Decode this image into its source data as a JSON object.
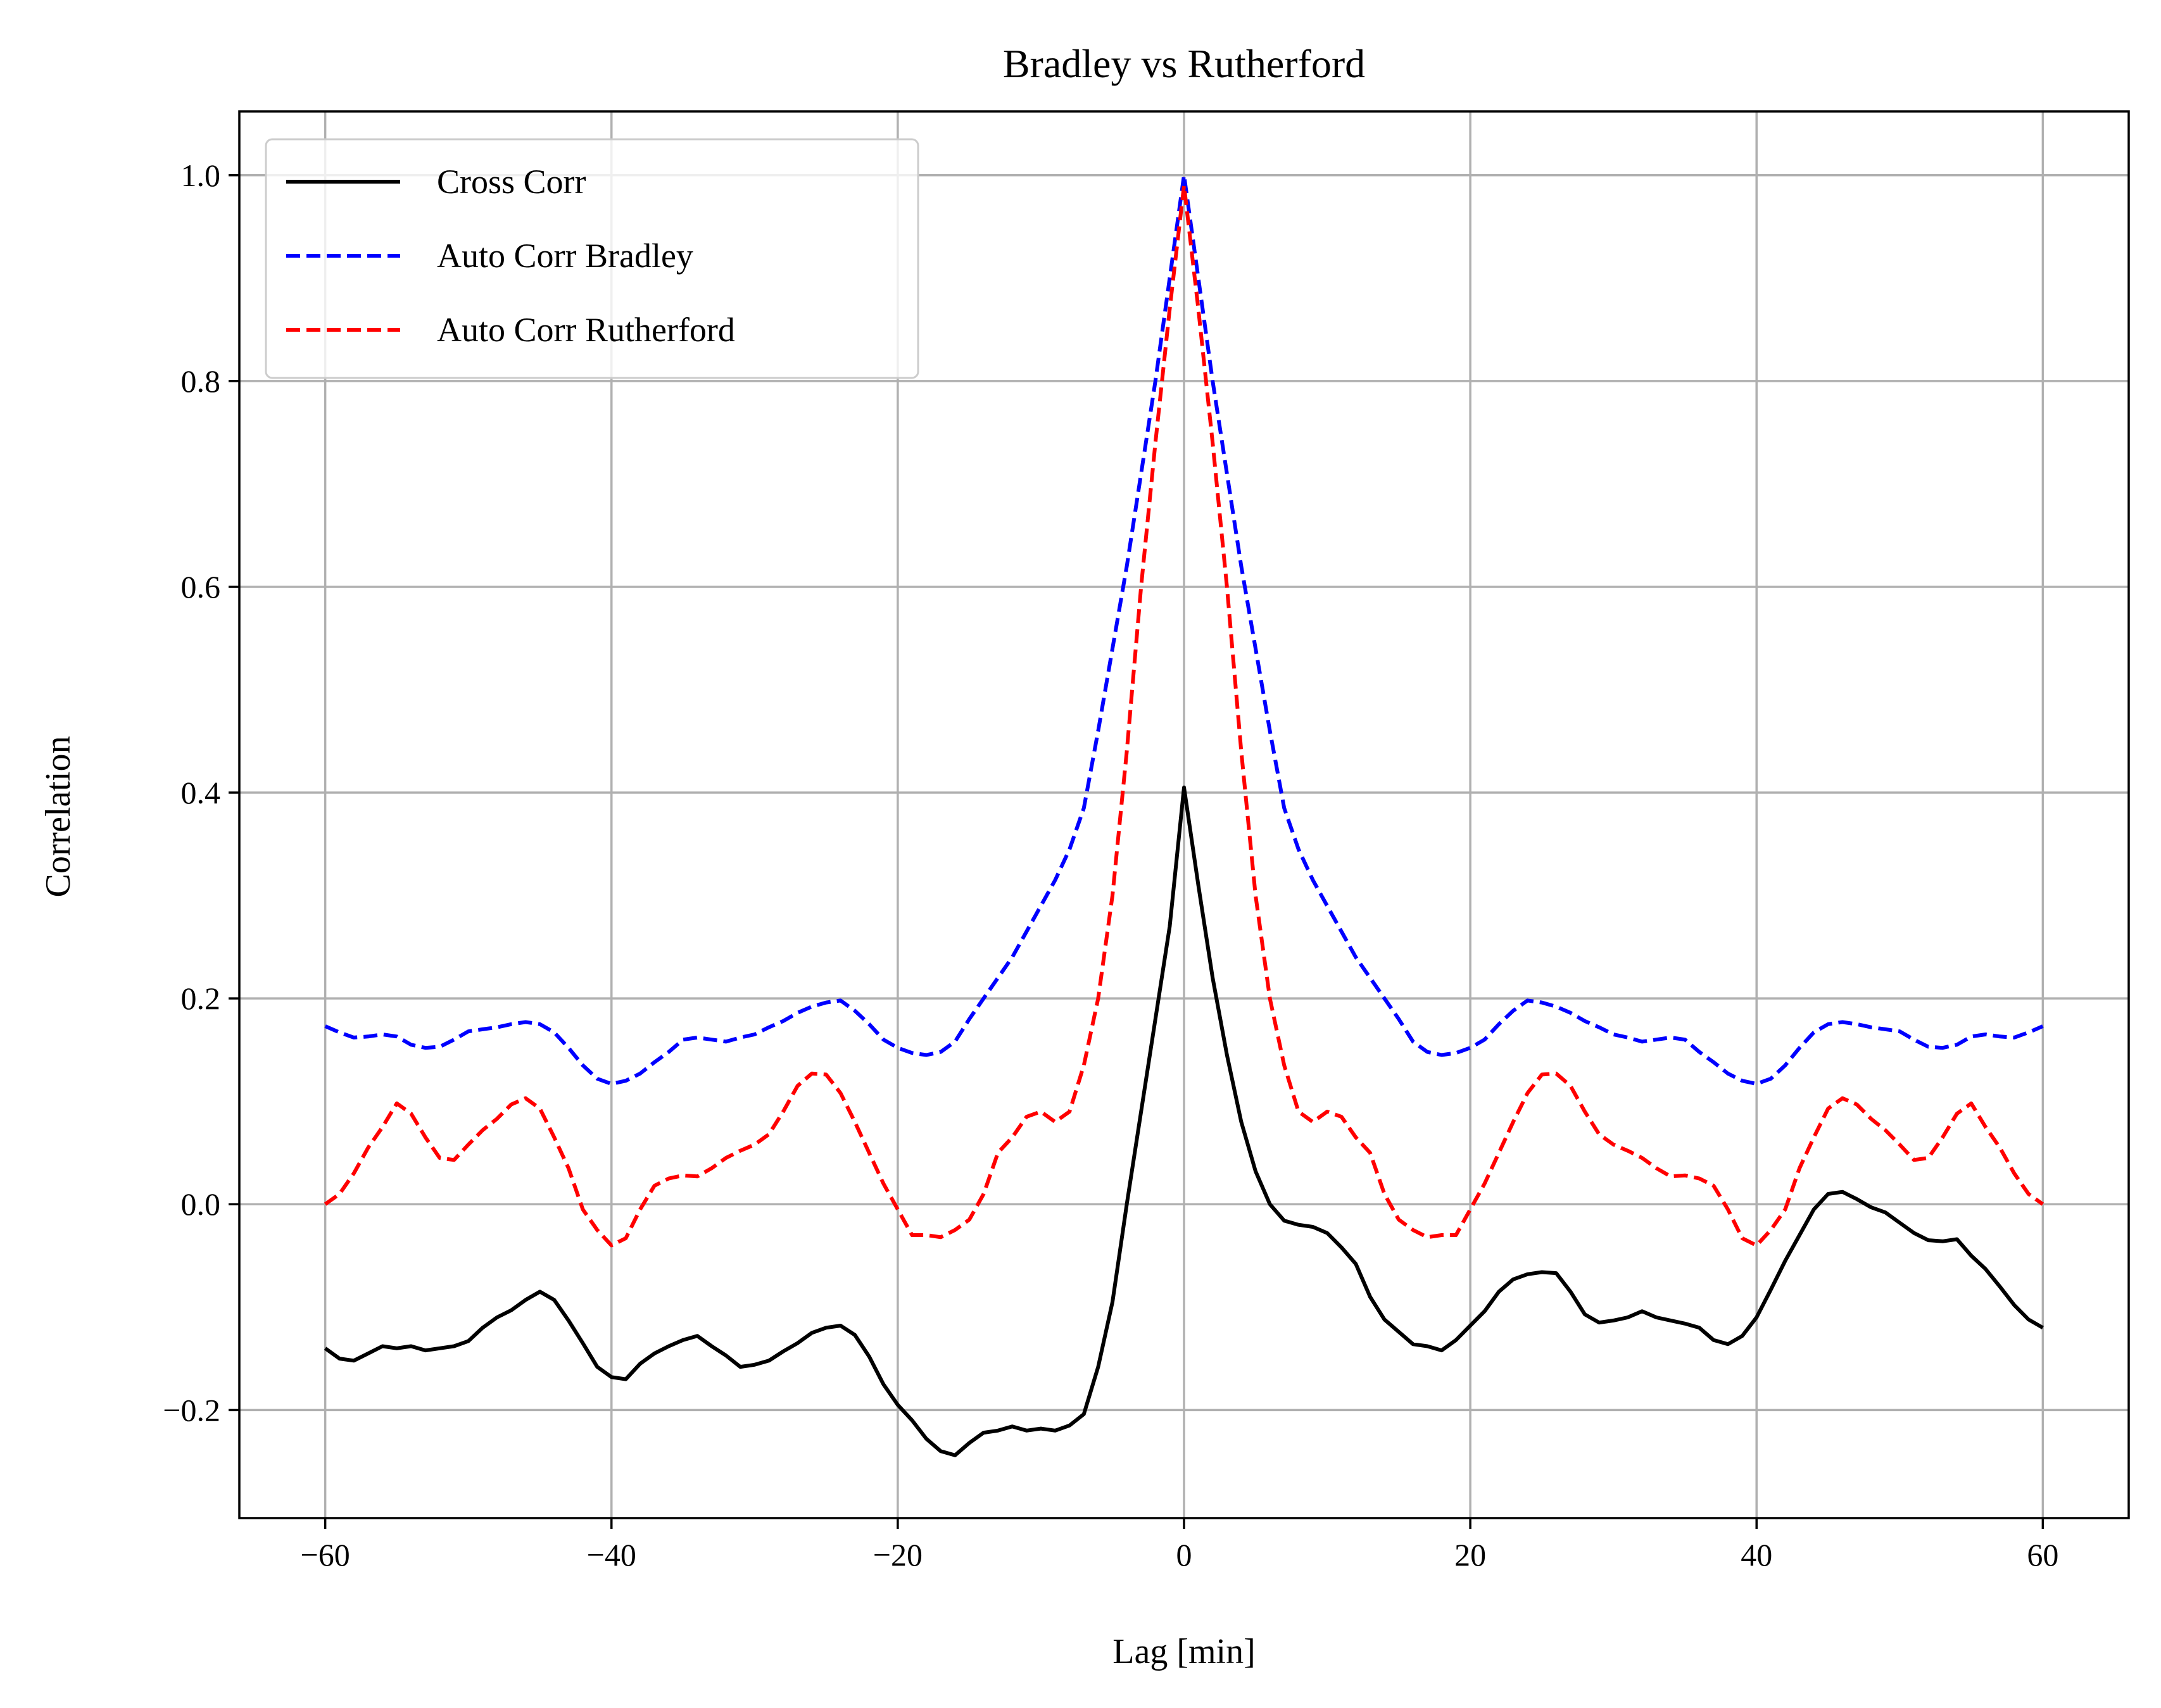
{
  "chart_data": {
    "type": "line",
    "title": "Bradley vs Rutherford",
    "xlabel": "Lag [min]",
    "ylabel": "Correlation",
    "xlim": [
      -66,
      66
    ],
    "ylim": [
      -0.305,
      1.062
    ],
    "xticks": [
      -60,
      -40,
      -20,
      0,
      20,
      40,
      60
    ],
    "xtick_labels": [
      "−60",
      "−40",
      "−20",
      "0",
      "20",
      "40",
      "60"
    ],
    "yticks": [
      -0.2,
      0.0,
      0.2,
      0.4,
      0.6,
      0.8,
      1.0
    ],
    "ytick_labels": [
      "−0.2",
      "0.0",
      "0.2",
      "0.4",
      "0.6",
      "0.8",
      "1.0"
    ],
    "grid": true,
    "legend_position": "top-left",
    "series": [
      {
        "name": "Cross Corr",
        "color": "#000000",
        "dash": "solid",
        "x": [
          -60,
          -59,
          -58,
          -57,
          -56,
          -55,
          -54,
          -53,
          -52,
          -51,
          -50,
          -49,
          -48,
          -47,
          -46,
          -45,
          -44,
          -43,
          -42,
          -41,
          -40,
          -39,
          -38,
          -37,
          -36,
          -35,
          -34,
          -33,
          -32,
          -31,
          -30,
          -29,
          -28,
          -27,
          -26,
          -25,
          -24,
          -23,
          -22,
          -21,
          -20,
          -19,
          -18,
          -17,
          -16,
          -15,
          -14,
          -13,
          -12,
          -11,
          -10,
          -9,
          -8,
          -7,
          -6,
          -5,
          -4,
          -3,
          -2,
          -1,
          0,
          1,
          2,
          3,
          4,
          5,
          6,
          7,
          8,
          9,
          10,
          11,
          12,
          13,
          14,
          15,
          16,
          17,
          18,
          19,
          20,
          21,
          22,
          23,
          24,
          25,
          26,
          27,
          28,
          29,
          30,
          31,
          32,
          33,
          34,
          35,
          36,
          37,
          38,
          39,
          40,
          41,
          42,
          43,
          44,
          45,
          46,
          47,
          48,
          49,
          50,
          51,
          52,
          53,
          54,
          55,
          56,
          57,
          58,
          59,
          60
        ],
        "y": [
          -0.14,
          -0.15,
          -0.152,
          -0.145,
          -0.138,
          -0.14,
          -0.138,
          -0.142,
          -0.14,
          -0.138,
          -0.133,
          -0.12,
          -0.11,
          -0.103,
          -0.093,
          -0.085,
          -0.093,
          -0.113,
          -0.135,
          -0.158,
          -0.168,
          -0.17,
          -0.155,
          -0.145,
          -0.138,
          -0.132,
          -0.128,
          -0.138,
          -0.147,
          -0.158,
          -0.156,
          -0.152,
          -0.143,
          -0.135,
          -0.125,
          -0.12,
          -0.118,
          -0.127,
          -0.148,
          -0.175,
          -0.195,
          -0.21,
          -0.228,
          -0.24,
          -0.244,
          -0.232,
          -0.222,
          -0.22,
          -0.216,
          -0.22,
          -0.218,
          -0.22,
          -0.215,
          -0.204,
          -0.158,
          -0.095,
          0.0,
          0.09,
          0.18,
          0.27,
          0.405,
          0.31,
          0.22,
          0.145,
          0.08,
          0.032,
          0.0,
          -0.016,
          -0.02,
          -0.022,
          -0.028,
          -0.042,
          -0.058,
          -0.09,
          -0.112,
          -0.124,
          -0.136,
          -0.138,
          -0.142,
          -0.132,
          -0.118,
          -0.104,
          -0.085,
          -0.073,
          -0.068,
          -0.066,
          -0.067,
          -0.085,
          -0.107,
          -0.115,
          -0.113,
          -0.11,
          -0.104,
          -0.11,
          -0.113,
          -0.116,
          -0.12,
          -0.132,
          -0.136,
          -0.128,
          -0.11,
          -0.083,
          -0.055,
          -0.03,
          -0.005,
          0.01,
          0.012,
          0.005,
          -0.003,
          -0.008,
          -0.018,
          -0.028,
          -0.035,
          -0.036,
          -0.034,
          -0.05,
          -0.063,
          -0.08,
          -0.098,
          -0.112,
          -0.12
        ]
      },
      {
        "name": "Auto Corr Bradley",
        "color": "#0000ff",
        "dash": "dashed",
        "x": [
          -60,
          -59,
          -58,
          -57,
          -56,
          -55,
          -54,
          -53,
          -52,
          -51,
          -50,
          -49,
          -48,
          -47,
          -46,
          -45,
          -44,
          -43,
          -42,
          -41,
          -40,
          -39,
          -38,
          -37,
          -36,
          -35,
          -34,
          -33,
          -32,
          -31,
          -30,
          -29,
          -28,
          -27,
          -26,
          -25,
          -24,
          -23,
          -22,
          -21,
          -20,
          -19,
          -18,
          -17,
          -16,
          -15,
          -14,
          -13,
          -12,
          -11,
          -10,
          -9,
          -8,
          -7,
          -6,
          -5,
          -4,
          -3,
          -2,
          -1,
          0,
          1,
          2,
          3,
          4,
          5,
          6,
          7,
          8,
          9,
          10,
          11,
          12,
          13,
          14,
          15,
          16,
          17,
          18,
          19,
          20,
          21,
          22,
          23,
          24,
          25,
          26,
          27,
          28,
          29,
          30,
          31,
          32,
          33,
          34,
          35,
          36,
          37,
          38,
          39,
          40,
          41,
          42,
          43,
          44,
          45,
          46,
          47,
          48,
          49,
          50,
          51,
          52,
          53,
          54,
          55,
          56,
          57,
          58,
          59,
          60
        ],
        "y": [
          0.173,
          0.167,
          0.162,
          0.163,
          0.165,
          0.163,
          0.155,
          0.152,
          0.153,
          0.16,
          0.168,
          0.17,
          0.172,
          0.175,
          0.177,
          0.175,
          0.167,
          0.152,
          0.135,
          0.122,
          0.117,
          0.12,
          0.127,
          0.138,
          0.148,
          0.16,
          0.162,
          0.16,
          0.158,
          0.162,
          0.165,
          0.172,
          0.178,
          0.186,
          0.192,
          0.196,
          0.198,
          0.188,
          0.175,
          0.16,
          0.152,
          0.147,
          0.145,
          0.148,
          0.158,
          0.18,
          0.2,
          0.22,
          0.24,
          0.265,
          0.29,
          0.315,
          0.345,
          0.385,
          0.46,
          0.54,
          0.62,
          0.71,
          0.8,
          0.9,
          1.0,
          0.9,
          0.8,
          0.71,
          0.62,
          0.54,
          0.46,
          0.385,
          0.345,
          0.315,
          0.29,
          0.265,
          0.24,
          0.22,
          0.2,
          0.18,
          0.158,
          0.148,
          0.145,
          0.147,
          0.152,
          0.16,
          0.175,
          0.188,
          0.198,
          0.196,
          0.192,
          0.186,
          0.178,
          0.172,
          0.165,
          0.162,
          0.158,
          0.16,
          0.162,
          0.16,
          0.148,
          0.138,
          0.127,
          0.12,
          0.117,
          0.122,
          0.135,
          0.152,
          0.167,
          0.175,
          0.177,
          0.175,
          0.172,
          0.17,
          0.168,
          0.16,
          0.153,
          0.152,
          0.155,
          0.163,
          0.165,
          0.163,
          0.162,
          0.167,
          0.173
        ]
      },
      {
        "name": "Auto Corr Rutherford",
        "color": "#ff0000",
        "dash": "dashed",
        "x": [
          -60,
          -59,
          -58,
          -57,
          -56,
          -55,
          -54,
          -53,
          -52,
          -51,
          -50,
          -49,
          -48,
          -47,
          -46,
          -45,
          -44,
          -43,
          -42,
          -41,
          -40,
          -39,
          -38,
          -37,
          -36,
          -35,
          -34,
          -33,
          -32,
          -31,
          -30,
          -29,
          -28,
          -27,
          -26,
          -25,
          -24,
          -23,
          -22,
          -21,
          -20,
          -19,
          -18,
          -17,
          -16,
          -15,
          -14,
          -13,
          -12,
          -11,
          -10,
          -9,
          -8,
          -7,
          -6,
          -5,
          -4,
          -3,
          -2,
          -1,
          0,
          1,
          2,
          3,
          4,
          5,
          6,
          7,
          8,
          9,
          10,
          11,
          12,
          13,
          14,
          15,
          16,
          17,
          18,
          19,
          20,
          21,
          22,
          23,
          24,
          25,
          26,
          27,
          28,
          29,
          30,
          31,
          32,
          33,
          34,
          35,
          36,
          37,
          38,
          39,
          40,
          41,
          42,
          43,
          44,
          45,
          46,
          47,
          48,
          49,
          50,
          51,
          52,
          53,
          54,
          55,
          56,
          57,
          58,
          59,
          60
        ],
        "y": [
          0.0,
          0.01,
          0.03,
          0.055,
          0.075,
          0.098,
          0.088,
          0.065,
          0.045,
          0.043,
          0.058,
          0.072,
          0.083,
          0.097,
          0.103,
          0.093,
          0.065,
          0.035,
          -0.005,
          -0.025,
          -0.04,
          -0.033,
          -0.005,
          0.018,
          0.025,
          0.028,
          0.027,
          0.035,
          0.045,
          0.052,
          0.058,
          0.068,
          0.09,
          0.115,
          0.127,
          0.126,
          0.108,
          0.08,
          0.05,
          0.02,
          -0.005,
          -0.03,
          -0.03,
          -0.032,
          -0.025,
          -0.015,
          0.01,
          0.05,
          0.065,
          0.085,
          0.09,
          0.08,
          0.09,
          0.135,
          0.2,
          0.3,
          0.44,
          0.6,
          0.74,
          0.87,
          0.99,
          0.87,
          0.74,
          0.6,
          0.44,
          0.3,
          0.2,
          0.135,
          0.09,
          0.08,
          0.09,
          0.085,
          0.065,
          0.05,
          0.01,
          -0.015,
          -0.025,
          -0.032,
          -0.03,
          -0.03,
          -0.005,
          0.02,
          0.05,
          0.08,
          0.108,
          0.126,
          0.127,
          0.115,
          0.09,
          0.068,
          0.058,
          0.052,
          0.045,
          0.035,
          0.027,
          0.028,
          0.025,
          0.018,
          -0.005,
          -0.033,
          -0.04,
          -0.025,
          -0.005,
          0.035,
          0.065,
          0.093,
          0.103,
          0.097,
          0.083,
          0.072,
          0.058,
          0.043,
          0.045,
          0.065,
          0.088,
          0.098,
          0.075,
          0.055,
          0.03,
          0.01,
          0.0
        ]
      }
    ]
  }
}
